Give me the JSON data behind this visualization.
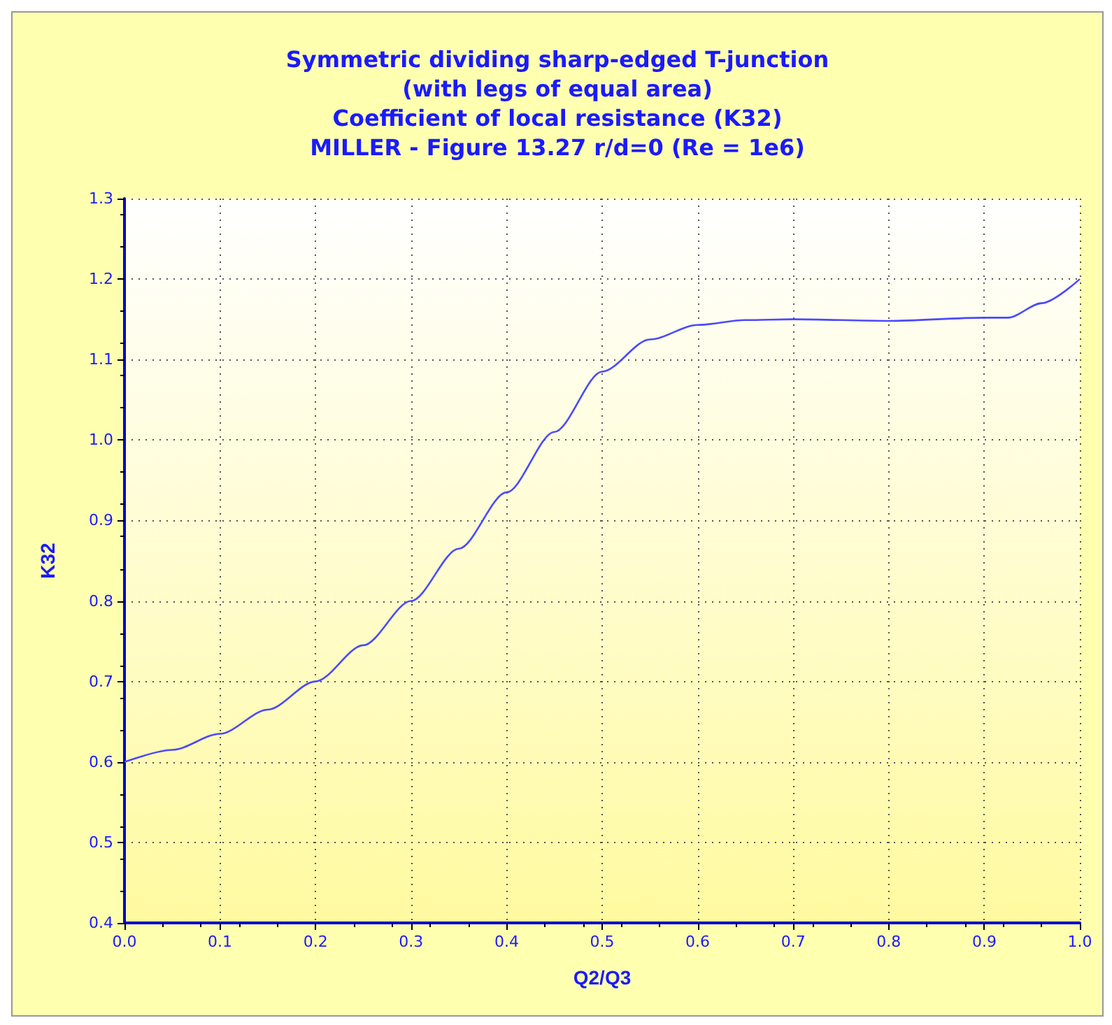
{
  "chart_data": {
    "type": "line",
    "title": "Symmetric dividing sharp-edged T-junction\n(with legs of equal area)\nCoefficient of local resistance (K32)\nMILLER - Figure 13.27 r/d=0 (Re = 1e6)",
    "xlabel": "Q2/Q3",
    "ylabel": "K32",
    "x": [
      0,
      0.05,
      0.1,
      0.15,
      0.2,
      0.25,
      0.3,
      0.35,
      0.4,
      0.45,
      0.5,
      0.55,
      0.6,
      0.65,
      0.7,
      0.8,
      0.9,
      0.925,
      0.96,
      1.0
    ],
    "series": [
      {
        "color": "#4a4aff",
        "values": [
          0.6,
          0.615,
          0.635,
          0.665,
          0.7,
          0.745,
          0.8,
          0.865,
          0.935,
          1.01,
          1.085,
          1.125,
          1.143,
          1.149,
          1.15,
          1.148,
          1.152,
          1.152,
          1.17,
          1.2
        ]
      }
    ],
    "xlim": [
      0,
      1
    ],
    "xticks": [
      {
        "value": 0,
        "label": "0.0"
      },
      0.1,
      0.2,
      0.3,
      0.4,
      0.5,
      0.6,
      0.7,
      0.8,
      0.9,
      {
        "value": 1,
        "label": "1.0"
      }
    ],
    "ylim": [
      0.4,
      1.3
    ],
    "yticks": [
      0.4,
      0.5,
      0.6,
      0.7,
      0.8,
      0.9,
      {
        "value": 1,
        "label": "1.0"
      },
      1.1,
      1.2,
      1.3
    ],
    "grid": true,
    "marker": "none",
    "line_style": "solid"
  }
}
